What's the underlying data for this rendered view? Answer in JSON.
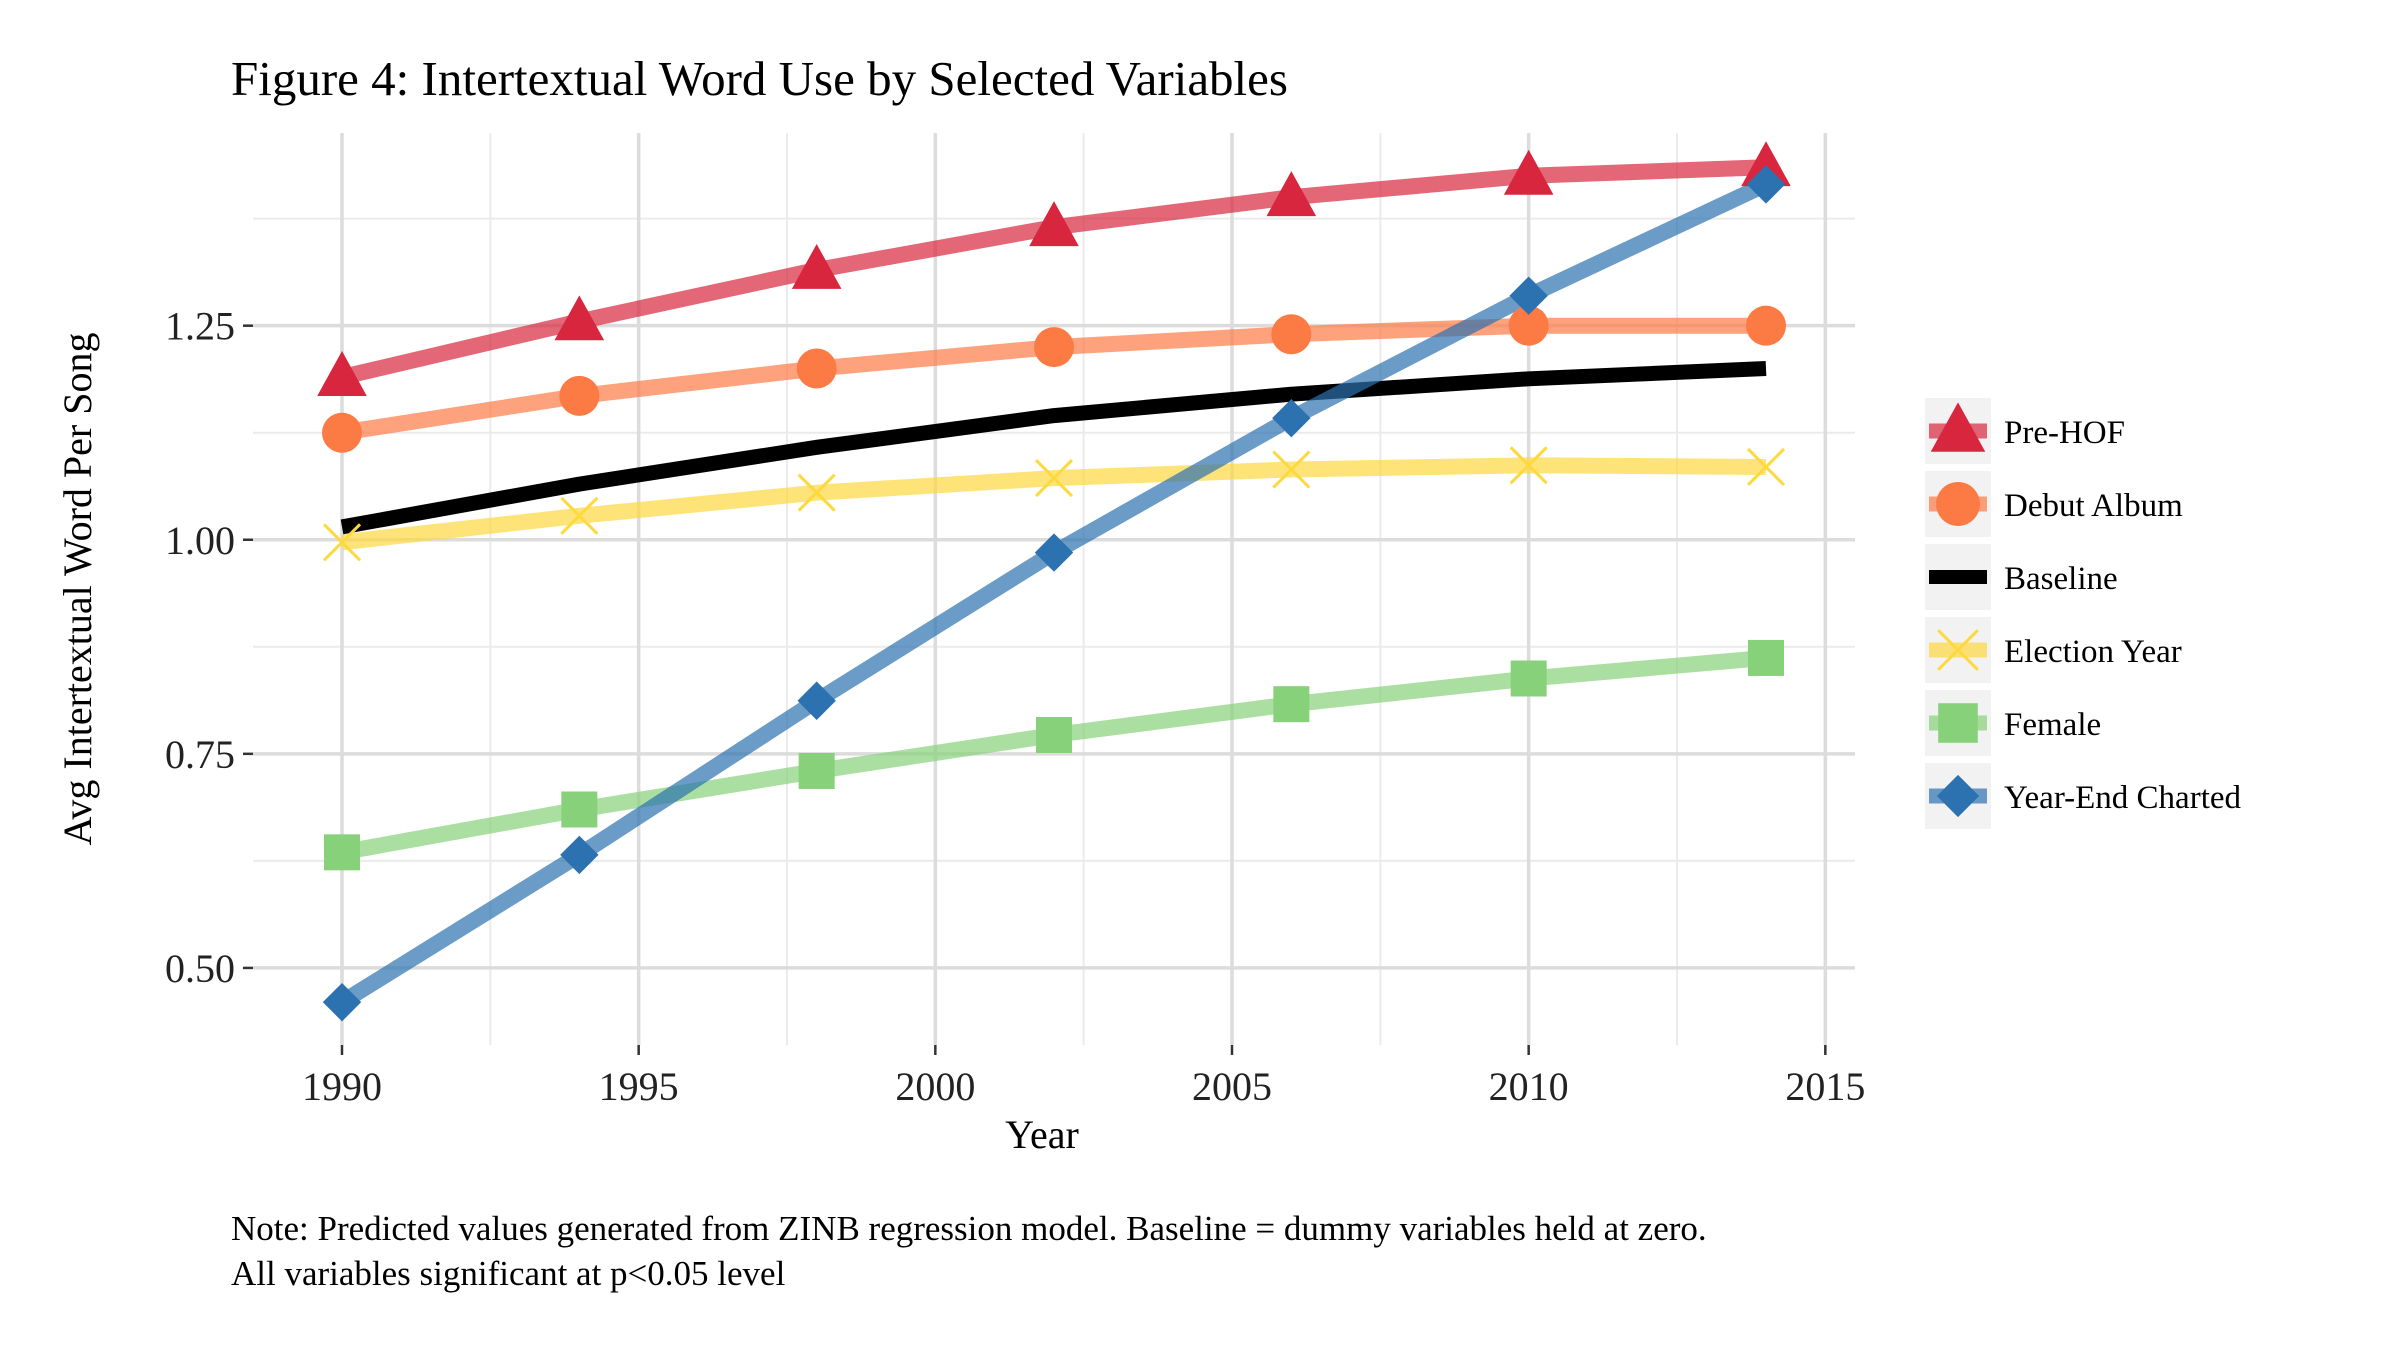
{
  "figure": {
    "title": "Figure 4: Intertextual Word Use by Selected Variables",
    "note_line1": "Note: Predicted values generated from ZINB regression model. Baseline = dummy variables held at zero.",
    "note_line2": "All variables significant at p<0.05 level"
  },
  "chart_data": {
    "type": "line",
    "title": "Figure 4: Intertextual Word Use by Selected Variables",
    "xlabel": "Year",
    "ylabel": "Avg Intertextual Word Per Song",
    "xlim": [
      1988.5,
      2015.5
    ],
    "ylim": [
      0.41,
      1.475
    ],
    "x_ticks": [
      1990,
      1995,
      2000,
      2005,
      2010,
      2015
    ],
    "y_ticks": [
      0.5,
      0.75,
      1.0,
      1.25
    ],
    "y_tick_labels": [
      "0.50",
      "0.75",
      "1.00",
      "1.25"
    ],
    "x_tick_labels": [
      "1990",
      "1995",
      "2000",
      "2005",
      "2010",
      "2015"
    ],
    "grid": true,
    "legend_position": "right",
    "x": [
      1990,
      1994,
      1998,
      2002,
      2006,
      2010,
      2014
    ],
    "series": [
      {
        "name": "Pre-HOF",
        "color": "#d7263d",
        "marker": "triangle",
        "values": [
          1.19,
          1.255,
          1.315,
          1.365,
          1.4,
          1.425,
          1.435
        ]
      },
      {
        "name": "Debut Album",
        "color": "#fc7b44",
        "marker": "circle",
        "values": [
          1.125,
          1.168,
          1.2,
          1.225,
          1.24,
          1.25,
          1.25
        ]
      },
      {
        "name": "Baseline",
        "color": "#000000",
        "marker": "none",
        "values": [
          1.015,
          1.065,
          1.108,
          1.145,
          1.17,
          1.188,
          1.2
        ]
      },
      {
        "name": "Election Year",
        "color": "#fdd93e",
        "marker": "x",
        "values": [
          0.997,
          1.028,
          1.055,
          1.072,
          1.082,
          1.087,
          1.085
        ]
      },
      {
        "name": "Female",
        "color": "#87d17a",
        "marker": "square",
        "values": [
          0.635,
          0.685,
          0.73,
          0.772,
          0.808,
          0.838,
          0.862
        ]
      },
      {
        "name": "Year-End Charted",
        "color": "#2c72b0",
        "marker": "diamond",
        "values": [
          0.46,
          0.632,
          0.812,
          0.985,
          1.142,
          1.285,
          1.415
        ]
      }
    ]
  }
}
